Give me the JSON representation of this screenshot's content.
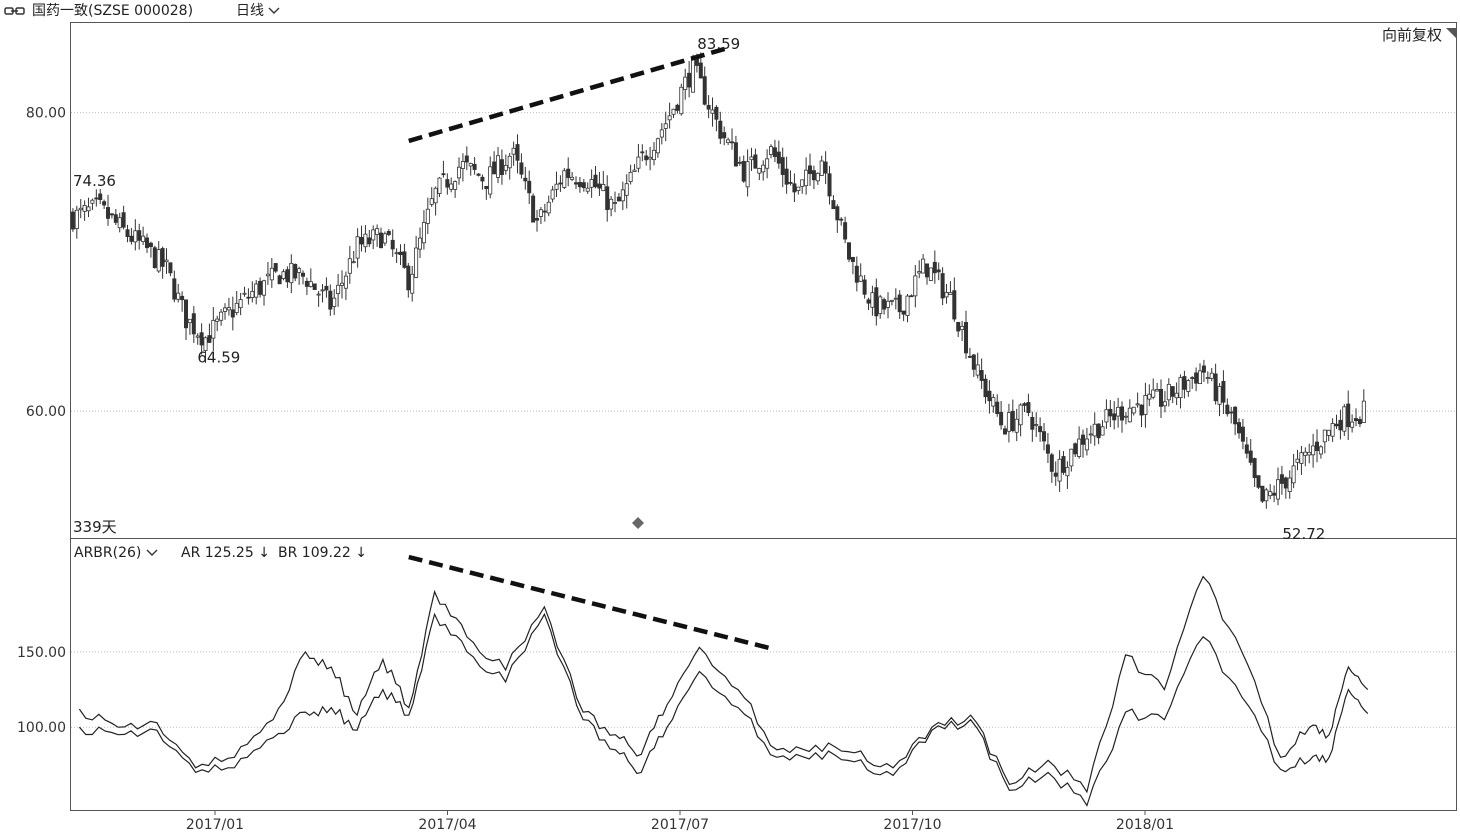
{
  "toolbar": {
    "link_icon": "link-icon",
    "stock": "国药一致(SZSE 000028)",
    "period": "日线",
    "period_caret_icon": "chevron-down-icon",
    "adjust": "向前复权"
  },
  "price_panel": {
    "days_label": "339天",
    "marker_icon": "diamond-icon"
  },
  "indicator_panel": {
    "name": "ARBR(26)",
    "caret_icon": "chevron-down-icon",
    "ar_text": "AR 125.25",
    "ar_arrow": "↓",
    "br_text": "BR 109.22",
    "br_arrow": "↓"
  },
  "chart_data": [
    {
      "type": "candlestick",
      "y_ticks": [
        "80.00",
        "60.00"
      ],
      "ylim": [
        51.5,
        86.0
      ],
      "grid": true,
      "x_tick_labels": [
        "2017/01",
        "2017/04",
        "2017/07",
        "2017/10",
        "2018/01"
      ],
      "annotations": [
        {
          "text": "74.36",
          "x": "2016/11",
          "y": 74.36
        },
        {
          "text": "64.59",
          "x": "2016/12",
          "y": 64.59
        },
        {
          "text": "83.59",
          "x": "2017/07",
          "y": 83.59
        },
        {
          "text": "52.72",
          "x": "2018/02",
          "y": 52.72
        }
      ],
      "trendline": {
        "style": "dashed",
        "from": {
          "x": "2017/03",
          "y": 78.1
        },
        "to": {
          "x": "2017/07",
          "y": 84.3
        }
      },
      "close_path": [
        {
          "x": "2016/11",
          "y": 73.0
        },
        {
          "x": "2016/11",
          "y": 73.6
        },
        {
          "x": "2016/11",
          "y": 72.0
        },
        {
          "x": "2016/12",
          "y": 70.8
        },
        {
          "x": "2016/12",
          "y": 69.5
        },
        {
          "x": "2016/12",
          "y": 66.2
        },
        {
          "x": "2016/12",
          "y": 64.9
        },
        {
          "x": "2017/01",
          "y": 66.5
        },
        {
          "x": "2017/01",
          "y": 68.0
        },
        {
          "x": "2017/01",
          "y": 69.2
        },
        {
          "x": "2017/02",
          "y": 69.0
        },
        {
          "x": "2017/02",
          "y": 67.0
        },
        {
          "x": "2017/02",
          "y": 71.0
        },
        {
          "x": "2017/03",
          "y": 71.8
        },
        {
          "x": "2017/03",
          "y": 68.8
        },
        {
          "x": "2017/03",
          "y": 74.5
        },
        {
          "x": "2017/04",
          "y": 76.5
        },
        {
          "x": "2017/04",
          "y": 75.5
        },
        {
          "x": "2017/04",
          "y": 77.3
        },
        {
          "x": "2017/05",
          "y": 72.5
        },
        {
          "x": "2017/05",
          "y": 76.0
        },
        {
          "x": "2017/05",
          "y": 75.5
        },
        {
          "x": "2017/06",
          "y": 73.5
        },
        {
          "x": "2017/06",
          "y": 76.8
        },
        {
          "x": "2017/06",
          "y": 79.5
        },
        {
          "x": "2017/07",
          "y": 83.0
        },
        {
          "x": "2017/07",
          "y": 79.0
        },
        {
          "x": "2017/07",
          "y": 76.0
        },
        {
          "x": "2017/08",
          "y": 77.5
        },
        {
          "x": "2017/08",
          "y": 74.5
        },
        {
          "x": "2017/08",
          "y": 77.0
        },
        {
          "x": "2017/09",
          "y": 70.5
        },
        {
          "x": "2017/09",
          "y": 67.0
        },
        {
          "x": "2017/09",
          "y": 66.8
        },
        {
          "x": "2017/10",
          "y": 69.8
        },
        {
          "x": "2017/10",
          "y": 67.5
        },
        {
          "x": "2017/10",
          "y": 62.5
        },
        {
          "x": "2017/11",
          "y": 59.0
        },
        {
          "x": "2017/11",
          "y": 60.0
        },
        {
          "x": "2017/11",
          "y": 56.0
        },
        {
          "x": "2017/12",
          "y": 58.5
        },
        {
          "x": "2017/12",
          "y": 60.2
        },
        {
          "x": "2018/01",
          "y": 60.8
        },
        {
          "x": "2018/01",
          "y": 62.8
        },
        {
          "x": "2018/02",
          "y": 59.0
        },
        {
          "x": "2018/02",
          "y": 53.8
        },
        {
          "x": "2018/02",
          "y": 55.5
        },
        {
          "x": "2018/03",
          "y": 57.5
        },
        {
          "x": "2018/03",
          "y": 59.5
        },
        {
          "x": "2018/03",
          "y": 60.0
        }
      ]
    },
    {
      "type": "line",
      "y_ticks": [
        "150.00",
        "100.00"
      ],
      "ylim": [
        45,
        225
      ],
      "grid": true,
      "trendline": {
        "style": "dashed",
        "from": {
          "x": "2017/03",
          "y": 213
        },
        "to": {
          "x": "2017/08",
          "y": 152
        }
      },
      "series": [
        {
          "name": "AR",
          "values": [
            {
              "x": "2016/11",
              "y": 112
            },
            {
              "x": "2016/11",
              "y": 100
            },
            {
              "x": "2016/12",
              "y": 103
            },
            {
              "x": "2016/12",
              "y": 73
            },
            {
              "x": "2017/01",
              "y": 80
            },
            {
              "x": "2017/01",
              "y": 105
            },
            {
              "x": "2017/02",
              "y": 150
            },
            {
              "x": "2017/02",
              "y": 140
            },
            {
              "x": "2017/02",
              "y": 108
            },
            {
              "x": "2017/03",
              "y": 145
            },
            {
              "x": "2017/03",
              "y": 113
            },
            {
              "x": "2017/03",
              "y": 190
            },
            {
              "x": "2017/04",
              "y": 160
            },
            {
              "x": "2017/04",
              "y": 138
            },
            {
              "x": "2017/05",
              "y": 180
            },
            {
              "x": "2017/05",
              "y": 110
            },
            {
              "x": "2017/06",
              "y": 95
            },
            {
              "x": "2017/06",
              "y": 82
            },
            {
              "x": "2017/06",
              "y": 115
            },
            {
              "x": "2017/07",
              "y": 153
            },
            {
              "x": "2017/07",
              "y": 125
            },
            {
              "x": "2017/08",
              "y": 85
            },
            {
              "x": "2017/08",
              "y": 88
            },
            {
              "x": "2017/09",
              "y": 83
            },
            {
              "x": "2017/09",
              "y": 73
            },
            {
              "x": "2017/10",
              "y": 100
            },
            {
              "x": "2017/10",
              "y": 108
            },
            {
              "x": "2017/11",
              "y": 62
            },
            {
              "x": "2017/11",
              "y": 78
            },
            {
              "x": "2017/12",
              "y": 57
            },
            {
              "x": "2017/12",
              "y": 148
            },
            {
              "x": "2018/01",
              "y": 125
            },
            {
              "x": "2018/01",
              "y": 200
            },
            {
              "x": "2018/02",
              "y": 150
            },
            {
              "x": "2018/02",
              "y": 80
            },
            {
              "x": "2018/03",
              "y": 100
            },
            {
              "x": "2018/03",
              "y": 95
            },
            {
              "x": "2018/03",
              "y": 140
            },
            {
              "x": "2018/03",
              "y": 125
            }
          ]
        },
        {
          "name": "BR",
          "values": [
            {
              "x": "2016/11",
              "y": 100
            },
            {
              "x": "2016/11",
              "y": 95
            },
            {
              "x": "2016/12",
              "y": 98
            },
            {
              "x": "2016/12",
              "y": 70
            },
            {
              "x": "2017/01",
              "y": 73
            },
            {
              "x": "2017/01",
              "y": 93
            },
            {
              "x": "2017/02",
              "y": 110
            },
            {
              "x": "2017/02",
              "y": 113
            },
            {
              "x": "2017/02",
              "y": 98
            },
            {
              "x": "2017/03",
              "y": 125
            },
            {
              "x": "2017/03",
              "y": 108
            },
            {
              "x": "2017/03",
              "y": 175
            },
            {
              "x": "2017/04",
              "y": 150
            },
            {
              "x": "2017/04",
              "y": 130
            },
            {
              "x": "2017/05",
              "y": 175
            },
            {
              "x": "2017/05",
              "y": 105
            },
            {
              "x": "2017/06",
              "y": 85
            },
            {
              "x": "2017/06",
              "y": 70
            },
            {
              "x": "2017/06",
              "y": 100
            },
            {
              "x": "2017/07",
              "y": 137
            },
            {
              "x": "2017/07",
              "y": 113
            },
            {
              "x": "2017/08",
              "y": 80
            },
            {
              "x": "2017/08",
              "y": 83
            },
            {
              "x": "2017/09",
              "y": 77
            },
            {
              "x": "2017/09",
              "y": 68
            },
            {
              "x": "2017/10",
              "y": 98
            },
            {
              "x": "2017/10",
              "y": 105
            },
            {
              "x": "2017/11",
              "y": 58
            },
            {
              "x": "2017/11",
              "y": 70
            },
            {
              "x": "2017/12",
              "y": 48
            },
            {
              "x": "2017/12",
              "y": 110
            },
            {
              "x": "2018/01",
              "y": 105
            },
            {
              "x": "2018/01",
              "y": 160
            },
            {
              "x": "2018/02",
              "y": 120
            },
            {
              "x": "2018/02",
              "y": 72
            },
            {
              "x": "2018/03",
              "y": 78
            },
            {
              "x": "2018/03",
              "y": 80
            },
            {
              "x": "2018/03",
              "y": 125
            },
            {
              "x": "2018/03",
              "y": 109
            }
          ]
        }
      ]
    }
  ]
}
